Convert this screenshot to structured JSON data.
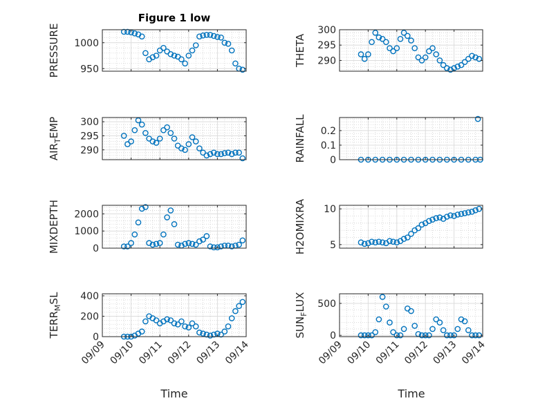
{
  "figure": {
    "title": "Figure 1 low",
    "marker_color": "#0072BD",
    "grid": true,
    "minor_grid": true,
    "x_axis": {
      "type": "date",
      "label": "Time",
      "range": [
        "09/09",
        "09/14"
      ],
      "ticks": [
        "09/09",
        "09/10",
        "09/11",
        "09/12",
        "09/13",
        "09/14"
      ]
    }
  },
  "chart_data": [
    {
      "type": "scatter",
      "id": "pressure",
      "ylabel": "PRESSURE",
      "ylim": [
        945,
        1025
      ],
      "yticks": [
        950,
        1000
      ],
      "yticklabels": [
        "950",
        "1000"
      ],
      "x": [
        "09/09 18:00",
        "09/09 21:00",
        "09/10 00:00",
        "09/10 03:00",
        "09/10 06:00",
        "09/10 09:00",
        "09/10 12:00",
        "09/10 15:00",
        "09/10 18:00",
        "09/10 21:00",
        "09/11 00:00",
        "09/11 03:00",
        "09/11 06:00",
        "09/11 09:00",
        "09/11 12:00",
        "09/11 15:00",
        "09/11 18:00",
        "09/11 21:00",
        "09/12 00:00",
        "09/12 03:00",
        "09/12 06:00",
        "09/12 09:00",
        "09/12 12:00",
        "09/12 15:00",
        "09/12 18:00",
        "09/12 21:00",
        "09/13 00:00",
        "09/13 03:00",
        "09/13 06:00",
        "09/13 09:00",
        "09/13 12:00",
        "09/13 15:00",
        "09/13 18:00",
        "09/13 21:00"
      ],
      "y": [
        1021,
        1021,
        1020,
        1018,
        1016,
        1012,
        980,
        968,
        972,
        975,
        985,
        990,
        983,
        978,
        975,
        973,
        968,
        960,
        975,
        985,
        995,
        1012,
        1014,
        1015,
        1015,
        1013,
        1011,
        1010,
        1000,
        998,
        985,
        960,
        950,
        948
      ]
    },
    {
      "type": "scatter",
      "id": "theta",
      "ylabel": "THETA",
      "ylim": [
        286.5,
        300
      ],
      "yticks": [
        290,
        295,
        300
      ],
      "yticklabels": [
        "290",
        "295",
        "300"
      ],
      "x": [
        "09/09 18:00",
        "09/09 21:00",
        "09/10 00:00",
        "09/10 03:00",
        "09/10 06:00",
        "09/10 09:00",
        "09/10 12:00",
        "09/10 15:00",
        "09/10 18:00",
        "09/10 21:00",
        "09/11 00:00",
        "09/11 03:00",
        "09/11 06:00",
        "09/11 09:00",
        "09/11 12:00",
        "09/11 15:00",
        "09/11 18:00",
        "09/11 21:00",
        "09/12 00:00",
        "09/12 03:00",
        "09/12 06:00",
        "09/12 09:00",
        "09/12 12:00",
        "09/12 15:00",
        "09/12 18:00",
        "09/12 21:00",
        "09/13 00:00",
        "09/13 03:00",
        "09/13 06:00",
        "09/13 09:00",
        "09/13 12:00",
        "09/13 15:00",
        "09/13 18:00",
        "09/13 21:00"
      ],
      "y": [
        292,
        290.5,
        292,
        296,
        299,
        297.5,
        297,
        296,
        294,
        293,
        294,
        297,
        299,
        298,
        296.5,
        294,
        291,
        290,
        291,
        293,
        294,
        292,
        290,
        288.5,
        287.5,
        287,
        287.5,
        288,
        288.5,
        289.5,
        290.5,
        291.5,
        291,
        290.5
      ]
    },
    {
      "type": "scatter",
      "id": "air_temp",
      "ylabel": "AIR_TEMP",
      "ylim": [
        286.5,
        301.5
      ],
      "yticks": [
        290,
        295,
        300
      ],
      "yticklabels": [
        "290",
        "295",
        "300"
      ],
      "x": [
        "09/09 18:00",
        "09/09 21:00",
        "09/10 00:00",
        "09/10 03:00",
        "09/10 06:00",
        "09/10 09:00",
        "09/10 12:00",
        "09/10 15:00",
        "09/10 18:00",
        "09/10 21:00",
        "09/11 00:00",
        "09/11 03:00",
        "09/11 06:00",
        "09/11 09:00",
        "09/11 12:00",
        "09/11 15:00",
        "09/11 18:00",
        "09/11 21:00",
        "09/12 00:00",
        "09/12 03:00",
        "09/12 06:00",
        "09/12 09:00",
        "09/12 12:00",
        "09/12 15:00",
        "09/12 18:00",
        "09/12 21:00",
        "09/13 00:00",
        "09/13 03:00",
        "09/13 06:00",
        "09/13 09:00",
        "09/13 12:00",
        "09/13 15:00",
        "09/13 18:00",
        "09/13 21:00"
      ],
      "y": [
        295,
        292,
        293,
        297,
        300.5,
        299,
        296,
        294,
        293,
        292.5,
        294,
        297,
        298,
        296,
        294,
        291.5,
        290.5,
        290,
        292,
        294.5,
        293,
        290.5,
        289,
        288,
        288.5,
        289,
        288.5,
        288.5,
        288.8,
        289,
        288.5,
        289,
        289,
        287
      ]
    },
    {
      "type": "scatter",
      "id": "rainfall",
      "ylabel": "RAINFALL",
      "ylim": [
        0,
        0.29
      ],
      "yticks": [
        0,
        0.1,
        0.2
      ],
      "yticklabels": [
        "0",
        "0.1",
        "0.2"
      ],
      "x": [
        "09/09 18:00",
        "09/10 00:00",
        "09/10 06:00",
        "09/10 12:00",
        "09/10 18:00",
        "09/11 00:00",
        "09/11 06:00",
        "09/11 12:00",
        "09/11 18:00",
        "09/12 00:00",
        "09/12 06:00",
        "09/12 12:00",
        "09/12 18:00",
        "09/13 00:00",
        "09/13 06:00",
        "09/13 12:00",
        "09/13 18:00",
        "09/13 20:00",
        "09/13 22:00"
      ],
      "y": [
        0,
        0,
        0,
        0,
        0,
        0,
        0,
        0,
        0,
        0,
        0,
        0,
        0,
        0,
        0,
        0,
        0,
        0.28,
        0
      ]
    },
    {
      "type": "scatter",
      "id": "mixdepth",
      "ylabel": "MIXDEPTH",
      "ylim": [
        0,
        2500
      ],
      "yticks": [
        0,
        1000,
        2000
      ],
      "yticklabels": [
        "0",
        "1000",
        "2000"
      ],
      "x": [
        "09/09 18:00",
        "09/09 21:00",
        "09/10 00:00",
        "09/10 03:00",
        "09/10 06:00",
        "09/10 09:00",
        "09/10 12:00",
        "09/10 15:00",
        "09/10 18:00",
        "09/10 21:00",
        "09/11 00:00",
        "09/11 03:00",
        "09/11 06:00",
        "09/11 09:00",
        "09/11 12:00",
        "09/11 15:00",
        "09/11 18:00",
        "09/11 21:00",
        "09/12 00:00",
        "09/12 03:00",
        "09/12 06:00",
        "09/12 09:00",
        "09/12 12:00",
        "09/12 15:00",
        "09/12 18:00",
        "09/12 21:00",
        "09/13 00:00",
        "09/13 03:00",
        "09/13 06:00",
        "09/13 09:00",
        "09/13 12:00",
        "09/13 15:00",
        "09/13 18:00",
        "09/13 21:00"
      ],
      "y": [
        100,
        100,
        300,
        800,
        1500,
        2300,
        2400,
        300,
        200,
        250,
        300,
        800,
        1800,
        2200,
        1400,
        200,
        150,
        250,
        300,
        250,
        200,
        400,
        500,
        700,
        100,
        50,
        50,
        100,
        150,
        150,
        100,
        150,
        200,
        450
      ]
    },
    {
      "type": "scatter",
      "id": "h2omixra",
      "ylabel": "H2OMIXRA",
      "ylim": [
        4.5,
        10.5
      ],
      "yticks": [
        5,
        10
      ],
      "yticklabels": [
        "5",
        "10"
      ],
      "x": [
        "09/09 18:00",
        "09/09 21:00",
        "09/10 00:00",
        "09/10 03:00",
        "09/10 06:00",
        "09/10 09:00",
        "09/10 12:00",
        "09/10 15:00",
        "09/10 18:00",
        "09/10 21:00",
        "09/11 00:00",
        "09/11 03:00",
        "09/11 06:00",
        "09/11 09:00",
        "09/11 12:00",
        "09/11 15:00",
        "09/11 18:00",
        "09/11 21:00",
        "09/12 00:00",
        "09/12 03:00",
        "09/12 06:00",
        "09/12 09:00",
        "09/12 12:00",
        "09/12 15:00",
        "09/12 18:00",
        "09/12 21:00",
        "09/13 00:00",
        "09/13 03:00",
        "09/13 06:00",
        "09/13 09:00",
        "09/13 12:00",
        "09/13 15:00",
        "09/13 18:00",
        "09/13 21:00"
      ],
      "y": [
        5.3,
        5.1,
        5.2,
        5.4,
        5.3,
        5.4,
        5.3,
        5.2,
        5.5,
        5.4,
        5.3,
        5.5,
        5.8,
        6,
        6.5,
        7,
        7.3,
        7.8,
        8,
        8.3,
        8.5,
        8.7,
        8.8,
        8.6,
        8.9,
        9.1,
        9,
        9.2,
        9.3,
        9.4,
        9.5,
        9.6,
        9.8,
        10
      ]
    },
    {
      "type": "scatter",
      "id": "terr_msl",
      "ylabel": "TERR_MSL",
      "ylim": [
        0,
        420
      ],
      "yticks": [
        0,
        200,
        400
      ],
      "yticklabels": [
        "0",
        "200",
        "400"
      ],
      "x": [
        "09/09 18:00",
        "09/09 21:00",
        "09/10 00:00",
        "09/10 03:00",
        "09/10 06:00",
        "09/10 09:00",
        "09/10 12:00",
        "09/10 15:00",
        "09/10 18:00",
        "09/10 21:00",
        "09/11 00:00",
        "09/11 03:00",
        "09/11 06:00",
        "09/11 09:00",
        "09/11 12:00",
        "09/11 15:00",
        "09/11 18:00",
        "09/11 21:00",
        "09/12 00:00",
        "09/12 03:00",
        "09/12 06:00",
        "09/12 09:00",
        "09/12 12:00",
        "09/12 15:00",
        "09/12 18:00",
        "09/12 21:00",
        "09/13 00:00",
        "09/13 03:00",
        "09/13 06:00",
        "09/13 09:00",
        "09/13 12:00",
        "09/13 15:00",
        "09/13 18:00",
        "09/13 21:00"
      ],
      "y": [
        0,
        0,
        0,
        10,
        30,
        50,
        150,
        200,
        180,
        160,
        130,
        150,
        170,
        160,
        130,
        120,
        150,
        100,
        90,
        130,
        100,
        40,
        30,
        20,
        10,
        20,
        30,
        20,
        50,
        100,
        180,
        250,
        300,
        340
      ]
    },
    {
      "type": "scatter",
      "id": "sun_flux",
      "ylabel": "SUN_FLUX",
      "ylim": [
        -20,
        650
      ],
      "yticks": [
        0,
        500
      ],
      "yticklabels": [
        "0",
        "500"
      ],
      "x": [
        "09/09 18:00",
        "09/09 21:00",
        "09/10 00:00",
        "09/10 03:00",
        "09/10 06:00",
        "09/10 09:00",
        "09/10 12:00",
        "09/10 15:00",
        "09/10 18:00",
        "09/10 21:00",
        "09/11 00:00",
        "09/11 03:00",
        "09/11 06:00",
        "09/11 09:00",
        "09/11 12:00",
        "09/11 15:00",
        "09/11 18:00",
        "09/11 21:00",
        "09/12 00:00",
        "09/12 03:00",
        "09/12 06:00",
        "09/12 09:00",
        "09/12 12:00",
        "09/12 15:00",
        "09/12 18:00",
        "09/12 21:00",
        "09/13 00:00",
        "09/13 03:00",
        "09/13 06:00",
        "09/13 09:00",
        "09/13 12:00",
        "09/13 15:00",
        "09/13 18:00",
        "09/13 21:00"
      ],
      "y": [
        0,
        0,
        0,
        0,
        50,
        250,
        600,
        450,
        200,
        50,
        0,
        0,
        100,
        420,
        380,
        150,
        20,
        0,
        0,
        0,
        100,
        250,
        200,
        80,
        0,
        0,
        0,
        100,
        250,
        220,
        80,
        0,
        0,
        0
      ]
    }
  ]
}
